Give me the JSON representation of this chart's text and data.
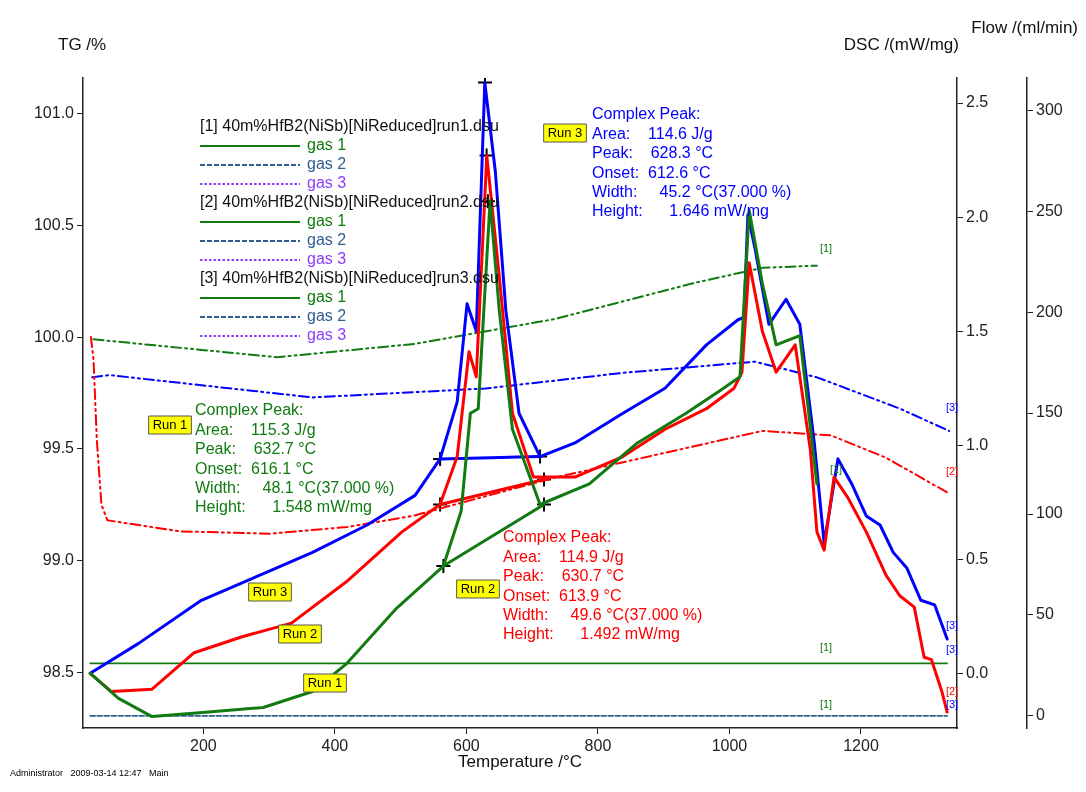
{
  "chart_data": {
    "type": "line",
    "xlabel": "Temperature /°C",
    "ylabel": "TG /%",
    "y2label": "DSC /(mW/mg)",
    "y3label": "Flow /(ml/min)",
    "xlim": [
      17,
      1346
    ],
    "xticks": [
      200,
      400,
      600,
      800,
      1000,
      1200
    ],
    "ylim": [
      98.25,
      101.16
    ],
    "yticks": [
      98.5,
      {
        "value": 99,
        "label": "99.0"
      },
      99.5,
      {
        "value": 100,
        "label": "100.0"
      },
      100.5,
      {
        "value": 101,
        "label": "101.0"
      }
    ],
    "y2lim": [
      -0.24,
      2.61
    ],
    "y2ticks": [
      {
        "value": 0,
        "label": "0.0"
      },
      0.5,
      {
        "value": 1,
        "label": "1.0"
      },
      1.5,
      {
        "value": 2,
        "label": "2.0"
      },
      2.5
    ],
    "y3lim": [
      -6,
      316
    ],
    "y3ticks": [
      0,
      50,
      100,
      150,
      200,
      250,
      300
    ],
    "grid": false,
    "legend": "top left",
    "marker": "none",
    "line_style": "solid",
    "series": [
      {
        "color": "#117a11",
        "axis": "y2",
        "x": [
          28,
          71,
          122,
          208,
          291,
          366,
          417,
          492,
          565,
          592,
          606,
          618,
          636,
          650,
          670,
          712,
          787,
          860,
          934,
          986,
          1016,
          1030,
          1050,
          1071,
          1107,
          1133
        ],
        "values": [
          0.0,
          -0.11,
          -0.19,
          -0.17,
          -0.15,
          -0.08,
          0.04,
          0.28,
          0.47,
          0.71,
          1.14,
          1.16,
          2.07,
          1.59,
          1.07,
          0.74,
          0.83,
          1.01,
          1.14,
          1.24,
          1.3,
          2.03,
          1.71,
          1.44,
          1.48,
          0.83
        ]
      },
      {
        "color": "#ff0000",
        "axis": "y2",
        "x": [
          28,
          60,
          122,
          186,
          259,
          334,
          417,
          502,
          560,
          586,
          604,
          615,
          631,
          650,
          670,
          702,
          765,
          838,
          902,
          965,
          1007,
          1019,
          1030,
          1050,
          1071,
          1100,
          1123,
          1133,
          1144,
          1159,
          1180,
          1208,
          1238,
          1259,
          1281,
          1296,
          1307,
          1323,
          1331
        ],
        "values": [
          0.0,
          -0.08,
          -0.07,
          0.09,
          0.16,
          0.22,
          0.4,
          0.62,
          0.74,
          0.95,
          1.41,
          1.3,
          2.27,
          1.74,
          1.14,
          0.86,
          0.86,
          0.95,
          1.07,
          1.16,
          1.25,
          1.32,
          1.8,
          1.5,
          1.32,
          1.44,
          0.98,
          0.62,
          0.54,
          0.86,
          0.77,
          0.62,
          0.43,
          0.34,
          0.29,
          0.07,
          0.06,
          -0.08,
          -0.17
        ]
      },
      {
        "color": "#0000ff",
        "axis": "y2",
        "x": [
          28,
          101,
          197,
          302,
          366,
          449,
          522,
          560,
          586,
          601,
          615,
          628,
          644,
          660,
          680,
          712,
          765,
          838,
          902,
          965,
          1013,
          1022,
          1028,
          1039,
          1060,
          1086,
          1107,
          1129,
          1144,
          1165,
          1186,
          1208,
          1229,
          1249,
          1270,
          1291,
          1312,
          1331
        ],
        "values": [
          0.0,
          0.13,
          0.32,
          0.45,
          0.53,
          0.65,
          0.78,
          0.94,
          1.19,
          1.62,
          1.5,
          2.59,
          2.2,
          1.59,
          1.14,
          0.95,
          1.01,
          1.14,
          1.25,
          1.44,
          1.55,
          1.56,
          2.01,
          1.86,
          1.53,
          1.64,
          1.53,
          1.01,
          0.57,
          0.94,
          0.83,
          0.69,
          0.65,
          0.53,
          0.46,
          0.32,
          0.3,
          0.15
        ]
      },
      {
        "color": "#117a11",
        "line_style": "dashed",
        "x": [
          33,
          312,
          522,
          733,
          943,
          1050,
          1133
        ],
        "values": [
          99.99,
          99.91,
          99.97,
          100.08,
          100.24,
          100.31,
          100.32
        ]
      },
      {
        "color": "#ff0000",
        "line_style": "dashed",
        "x": [
          29,
          33,
          38,
          45,
          54,
          165,
          302,
          419,
          519,
          733,
          1050,
          1154,
          1238,
          1334
        ],
        "values": [
          100.0,
          99.9,
          99.54,
          99.25,
          99.18,
          99.13,
          99.12,
          99.15,
          99.2,
          99.37,
          99.58,
          99.56,
          99.46,
          99.3
        ]
      },
      {
        "color": "#0000ff",
        "line_style": "dashed",
        "x": [
          31,
          57,
          366,
          629,
          838,
          1039,
          1133,
          1259,
          1334
        ],
        "values": [
          99.82,
          99.83,
          99.73,
          99.77,
          99.84,
          99.89,
          99.82,
          99.68,
          99.58
        ]
      },
      {
        "color": "#0000ff",
        "axis": "y2",
        "x": [
          560,
          712
        ],
        "values": [
          0.94,
          0.95
        ]
      },
      {
        "color": "#ff0000",
        "axis": "y2",
        "x": [
          560,
          718
        ],
        "values": [
          0.74,
          0.85
        ]
      },
      {
        "color": "#117a11",
        "axis": "y2",
        "x": [
          565,
          718
        ],
        "values": [
          0.47,
          0.74
        ]
      },
      {
        "type": "scatter",
        "color": "#000000",
        "axis": "y2",
        "marker": "cross",
        "x": [
          560,
          712,
          560,
          718,
          565,
          718,
          628.3,
          630.7,
          632.7
        ],
        "values": [
          0.94,
          0.95,
          0.74,
          0.85,
          0.47,
          0.74,
          2.59,
          2.27,
          2.07
        ]
      },
      {
        "name": "gas 1",
        "color": "#117a11",
        "axis": "y3",
        "x": [
          28,
          1331
        ],
        "values": [
          26,
          26
        ]
      },
      {
        "name": "gas 2",
        "color": "#2f5f8f",
        "axis": "y3",
        "line_style": "dashed",
        "x": [
          28,
          1331
        ],
        "values": [
          0,
          0
        ]
      },
      {
        "name": "gas 3",
        "color": "#8a3cff",
        "axis": "y3",
        "line_style": "dotted"
      }
    ],
    "annotations": [
      "[1] 40m%HfB2(NiSb)[NiReduced]run1.dsu",
      "[2] 40m%HfB2(NiSb)[NiReduced]run2.dsu",
      "[3] 40m%HfB2(NiSb)[NiReduced]run3.dsu",
      "Complex Peak:\nArea:    114.6 J/g\nPeak:    628.3 °C\nOnset:  612.6 °C\nWidth:     45.2 °C(37.000 %)\nHeight:      1.646 mW/mg",
      "Complex Peak:\nArea:    115.3 J/g\nPeak:    632.7 °C\nOnset:  616.1 °C\nWidth:     48.1 °C(37.000 %)\nHeight:      1.548 mW/mg",
      "Complex Peak:\nArea:    114.9 J/g\nPeak:    630.7 °C\nOnset:  613.9 °C\nWidth:     49.6 °C(37.000 %)\nHeight:      1.492 mW/mg",
      "Run 3",
      "Run 1",
      "Run 3",
      "Run 2",
      "Run 2",
      "Run 1",
      "Administrator   2009-03-14 12:47   Main",
      "[1]",
      "[2]",
      "[3]",
      "[1]",
      "[3]",
      "[1]",
      "[3]",
      "[2]",
      "[3]",
      "[1]"
    ]
  }
}
